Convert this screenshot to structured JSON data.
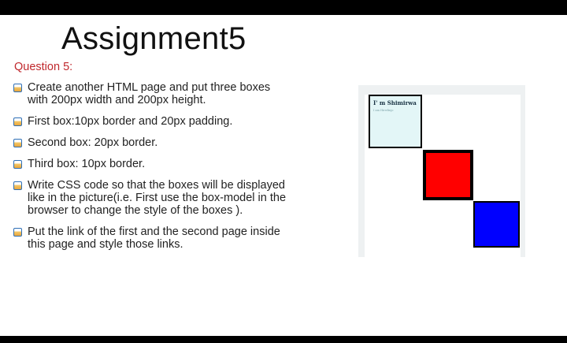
{
  "slide": {
    "title": "Assignment5",
    "question_label": "Question 5:",
    "bullets": [
      "Create another HTML page and put  three boxes with 200px width and 200px height.",
      "First box:10px border and 20px padding.",
      "Second box: 20px border.",
      "Third box: 10px border.",
      "Write CSS code so that the boxes will be displayed like in the picture(i.e. First use the box-model in the browser to change the style of  the boxes ).",
      "Put the link of the first and the second page inside this page and style those links."
    ]
  },
  "figure": {
    "box1_title": "I' m Shimirwa",
    "box1_subtitle": "I am Hirwlinjo",
    "box1_color": "#e3f6f7",
    "box2_color": "#ff0000",
    "box3_color": "#0000ff",
    "border_color": "#000000"
  },
  "colors": {
    "question": "#c0282d",
    "bullet_icon": "#e9a73d"
  }
}
